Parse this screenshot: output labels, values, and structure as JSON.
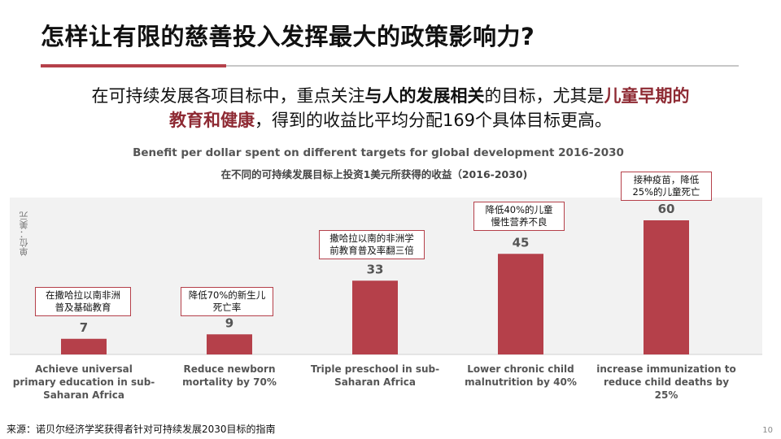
{
  "slide": {
    "title": "怎样让有限的慈善投入发挥最大的政策影响力?",
    "subtitle_line1_a": "在可持续发展各项目标中，重点关注",
    "subtitle_line1_b": "与人的发展相关",
    "subtitle_line1_c": "的目标，尤其是",
    "subtitle_line1_d": "儿童早期的",
    "subtitle_line2_a": "教育和健康",
    "subtitle_line2_b": "，得到的收益比平均分配169个具体目标更高。",
    "source": "来源：诺贝尔经济学奖获得者针对可持续发展2030目标的指南",
    "page_number": "10",
    "accent_color": "#b5404a"
  },
  "chart_data": {
    "type": "bar",
    "title": "Benefit per dollar spent on different targets for global development 2016-2030",
    "subtitle": "在不同的可持续发展目标上投资1美元所获得的收益（2016-2030)",
    "ylabel": "单位：美元",
    "xlabel": "",
    "ylim": [
      0,
      65
    ],
    "grid": false,
    "bar_color": "#b5404a",
    "categories": [
      "Achieve universal primary education in sub-Saharan Africa",
      "Reduce newborn mortality by 70%",
      "Triple preschool in sub-Saharan Africa",
      "Lower chronic child malnutrition by 40%",
      "increase immunization to reduce child deaths by 25%"
    ],
    "values": [
      7,
      9,
      33,
      45,
      60
    ],
    "value_labels": [
      "7",
      "9",
      "33",
      "45",
      "60"
    ],
    "annotations": [
      [
        "在撒哈拉以南非洲",
        "普及基础教育"
      ],
      [
        "降低70%的新生儿",
        "死亡率"
      ],
      [
        "撒哈拉以南的非洲学",
        "前教育普及率翻三倍"
      ],
      [
        "降低40%的儿童",
        "慢性营养不良"
      ],
      [
        "接种疫苗，降低",
        "25%的儿童死亡"
      ]
    ]
  }
}
